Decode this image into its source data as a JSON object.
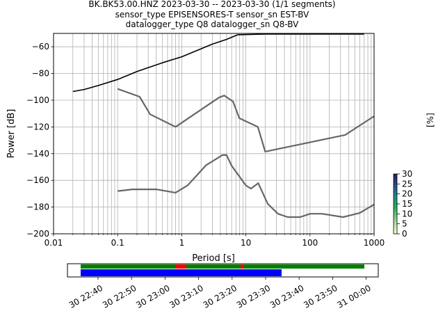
{
  "header": {
    "title_line1": "BK.BK53.00.HNZ   2023-03-30 -- 2023-03-30  (1/1 segments)",
    "title_line2": "sensor_type EPISENSORES-T sensor_sn EST-BV",
    "title_line3": "datalogger_type Q8 datalogger_sn Q8-BV"
  },
  "colorbar": {
    "label": "[%]",
    "ticks": [
      "0",
      "5",
      "10",
      "15",
      "20",
      "25",
      "30"
    ],
    "range": [
      0,
      30
    ]
  },
  "chart_data": {
    "type": "line",
    "xlabel": "Period [s]",
    "ylabel": "Power [dB]",
    "xscale": "log",
    "xlim": [
      0.01,
      1000
    ],
    "ylim": [
      -200,
      -50
    ],
    "xticks": [
      0.01,
      0.1,
      1,
      10,
      100,
      1000
    ],
    "xtick_labels": [
      "0.01",
      "0.1",
      "1",
      "10",
      "100",
      "1000"
    ],
    "yticks": [
      -200,
      -180,
      -160,
      -140,
      -120,
      -100,
      -80,
      -60
    ],
    "ytick_labels": [
      "−200",
      "−180",
      "−160",
      "−140",
      "−120",
      "−100",
      "−80",
      "−60"
    ],
    "grid": true,
    "series": [
      {
        "role": "psd-measurement",
        "color": "#000000",
        "x": [
          0.02,
          0.03,
          0.05,
          0.1,
          0.2,
          0.5,
          1,
          2,
          3,
          5,
          7.5,
          20,
          100,
          700
        ],
        "y": [
          -93.5,
          -92.0,
          -89.0,
          -84.5,
          -78.5,
          -72.0,
          -67.5,
          -61.5,
          -58.0,
          -54.5,
          -51.0,
          -50.5,
          -50.5,
          -50.5
        ]
      },
      {
        "role": "high-noise-model",
        "color": "#666666",
        "x": [
          0.1,
          0.22,
          0.32,
          0.8,
          3.8,
          4.6,
          6.3,
          7.9,
          15.4,
          20,
          354.8,
          1000
        ],
        "y": [
          -91.5,
          -97.4,
          -110.5,
          -120.0,
          -98.0,
          -96.5,
          -101.0,
          -113.5,
          -120.0,
          -138.5,
          -126.0,
          -112.0
        ]
      },
      {
        "role": "low-noise-model",
        "color": "#666666",
        "x": [
          0.1,
          0.17,
          0.4,
          0.8,
          1.24,
          2.4,
          4.3,
          5.0,
          6.0,
          10.0,
          12.0,
          15.6,
          21.9,
          31.6,
          45.0,
          70.0,
          101.0,
          154.0,
          328.0,
          600.0,
          1000.0
        ],
        "y": [
          -168.0,
          -166.7,
          -166.7,
          -169.2,
          -163.7,
          -148.6,
          -141.1,
          -141.1,
          -149.0,
          -163.8,
          -166.2,
          -162.1,
          -177.5,
          -185.0,
          -187.5,
          -187.5,
          -185.0,
          -185.0,
          -187.5,
          -184.4,
          -178.0
        ]
      }
    ]
  },
  "timeline": {
    "tick_labels": [
      "30 22:40",
      "30 22:50",
      "30 23:00",
      "30 23:10",
      "30 23:20",
      "30 23:30",
      "30 23:40",
      "30 23:50",
      "31 00:00"
    ],
    "colors": {
      "coverage": "#008000",
      "gap": "#ff0000",
      "data": "#0000ff"
    }
  }
}
